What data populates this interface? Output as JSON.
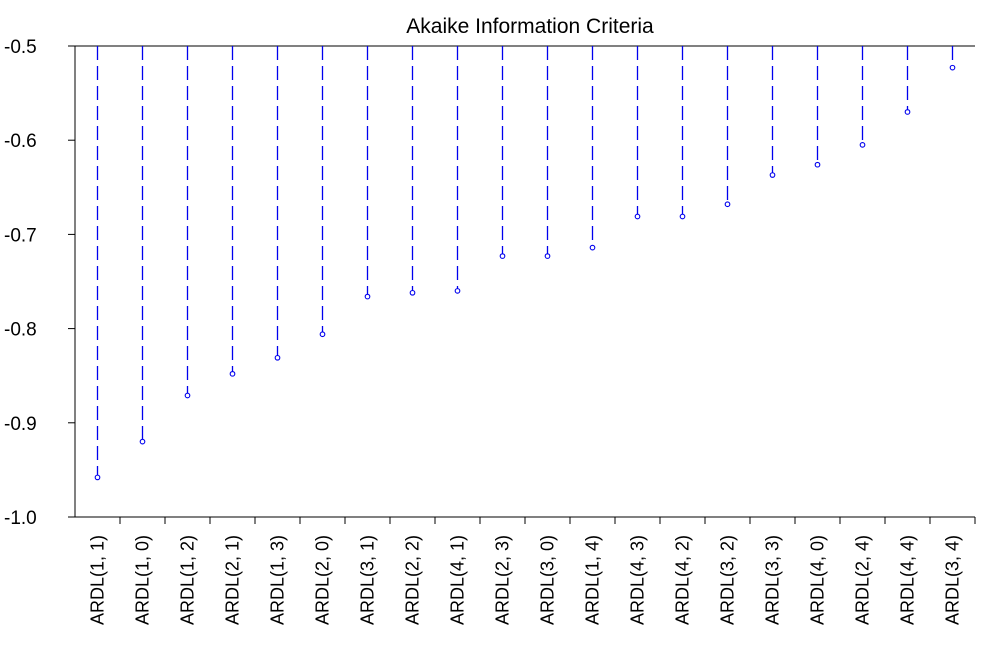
{
  "chart_data": {
    "type": "scatter",
    "style": "dropline",
    "title": "Akaike Information Criteria",
    "xlabel": "",
    "ylabel": "",
    "ylim": [
      -1.0,
      -0.5
    ],
    "yticks": [
      "-0.5",
      "-0.6",
      "-0.7",
      "-0.8",
      "-0.9",
      "-1.0"
    ],
    "ytick_values": [
      -0.5,
      -0.6,
      -0.7,
      -0.8,
      -0.9,
      -1.0
    ],
    "grid": false,
    "color": "#0000ee",
    "categories": [
      "ARDL(1, 1)",
      "ARDL(1, 0)",
      "ARDL(1, 2)",
      "ARDL(2, 1)",
      "ARDL(1, 3)",
      "ARDL(2, 0)",
      "ARDL(3, 1)",
      "ARDL(2, 2)",
      "ARDL(4, 1)",
      "ARDL(2, 3)",
      "ARDL(3, 0)",
      "ARDL(1, 4)",
      "ARDL(4, 3)",
      "ARDL(4, 2)",
      "ARDL(3, 2)",
      "ARDL(3, 3)",
      "ARDL(4, 0)",
      "ARDL(2, 4)",
      "ARDL(4, 4)",
      "ARDL(3, 4)"
    ],
    "values": [
      -0.958,
      -0.92,
      -0.871,
      -0.848,
      -0.831,
      -0.806,
      -0.766,
      -0.762,
      -0.76,
      -0.723,
      -0.723,
      -0.714,
      -0.681,
      -0.681,
      -0.668,
      -0.637,
      -0.626,
      -0.605,
      -0.57,
      -0.523
    ]
  }
}
